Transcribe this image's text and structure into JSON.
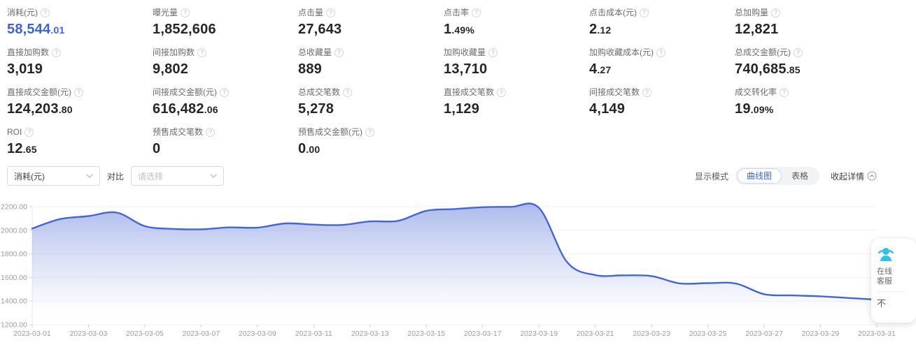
{
  "metrics": [
    {
      "label": "消耗(元)",
      "int": "58,544",
      "dec": ".01",
      "highlight": true
    },
    {
      "label": "曝光量",
      "int": "1,852,606",
      "dec": "",
      "highlight": false
    },
    {
      "label": "点击量",
      "int": "27,643",
      "dec": "",
      "highlight": false
    },
    {
      "label": "点击率",
      "int": "1",
      "dec": ".49%",
      "highlight": false
    },
    {
      "label": "点击成本(元)",
      "int": "2",
      "dec": ".12",
      "highlight": false
    },
    {
      "label": "总加购量",
      "int": "12,821",
      "dec": "",
      "highlight": false
    },
    {
      "label": "直接加购数",
      "int": "3,019",
      "dec": "",
      "highlight": false
    },
    {
      "label": "间接加购数",
      "int": "9,802",
      "dec": "",
      "highlight": false
    },
    {
      "label": "总收藏量",
      "int": "889",
      "dec": "",
      "highlight": false
    },
    {
      "label": "加购收藏量",
      "int": "13,710",
      "dec": "",
      "highlight": false
    },
    {
      "label": "加购收藏成本(元)",
      "int": "4",
      "dec": ".27",
      "highlight": false
    },
    {
      "label": "总成交金额(元)",
      "int": "740,685",
      "dec": ".85",
      "highlight": false
    },
    {
      "label": "直接成交金额(元)",
      "int": "124,203",
      "dec": ".80",
      "highlight": false
    },
    {
      "label": "间接成交金额(元)",
      "int": "616,482",
      "dec": ".06",
      "highlight": false
    },
    {
      "label": "总成交笔数",
      "int": "5,278",
      "dec": "",
      "highlight": false
    },
    {
      "label": "直接成交笔数",
      "int": "1,129",
      "dec": "",
      "highlight": false
    },
    {
      "label": "间接成交笔数",
      "int": "4,149",
      "dec": "",
      "highlight": false
    },
    {
      "label": "成交转化率",
      "int": "19",
      "dec": ".09%",
      "highlight": false
    },
    {
      "label": "ROI",
      "int": "12",
      "dec": ".65",
      "highlight": false
    },
    {
      "label": "预售成交笔数",
      "int": "0",
      "dec": "",
      "highlight": false
    },
    {
      "label": "预售成交金额(元)",
      "int": "0",
      "dec": ".00",
      "highlight": false
    }
  ],
  "controls": {
    "metric_select_value": "消耗(元)",
    "compare_label": "对比",
    "compare_placeholder": "请选择",
    "display_mode_label": "显示模式",
    "mode_curve": "曲线图",
    "mode_table": "表格",
    "collapse_label": "收起详情"
  },
  "chart_data": {
    "type": "area",
    "series_name": "消耗(元)",
    "x": [
      "2023-03-01",
      "2023-03-02",
      "2023-03-03",
      "2023-03-04",
      "2023-03-05",
      "2023-03-06",
      "2023-03-07",
      "2023-03-08",
      "2023-03-09",
      "2023-03-10",
      "2023-03-11",
      "2023-03-12",
      "2023-03-13",
      "2023-03-14",
      "2023-03-15",
      "2023-03-16",
      "2023-03-17",
      "2023-03-18",
      "2023-03-19",
      "2023-03-20",
      "2023-03-21",
      "2023-03-22",
      "2023-03-23",
      "2023-03-24",
      "2023-03-25",
      "2023-03-26",
      "2023-03-27",
      "2023-03-28",
      "2023-03-29",
      "2023-03-30",
      "2023-03-31"
    ],
    "values": [
      2015,
      2095,
      2120,
      2150,
      2035,
      2012,
      2008,
      2024,
      2022,
      2058,
      2048,
      2045,
      2075,
      2080,
      2165,
      2180,
      2195,
      2198,
      2190,
      1730,
      1620,
      1618,
      1612,
      1550,
      1552,
      1548,
      1458,
      1448,
      1440,
      1426,
      1412
    ],
    "ylim": [
      1200,
      2200
    ],
    "ytick_labels": [
      "2200.00",
      "2000.00",
      "1800.00",
      "1600.00",
      "1400.00",
      "1200.00"
    ],
    "ytick_values": [
      2200,
      2000,
      1800,
      1600,
      1400,
      1200
    ],
    "x_label_every": 2,
    "grid": true,
    "legend_position": "none",
    "line_color": "#4465d8",
    "area_top_color": "rgba(86,115,214,0.48)",
    "area_bottom_color": "rgba(255,255,255,0)",
    "axis_text_color": "#9a9ca3",
    "grid_color": "#f0f2f5"
  },
  "service_widget": {
    "line1": "在线",
    "line2": "客服",
    "bottom": "不",
    "icon_color": "#2fc2e8"
  },
  "colors": {
    "accent_blue": "#3d63dc",
    "value_text": "#262626",
    "label_text": "#6b6b6b"
  }
}
